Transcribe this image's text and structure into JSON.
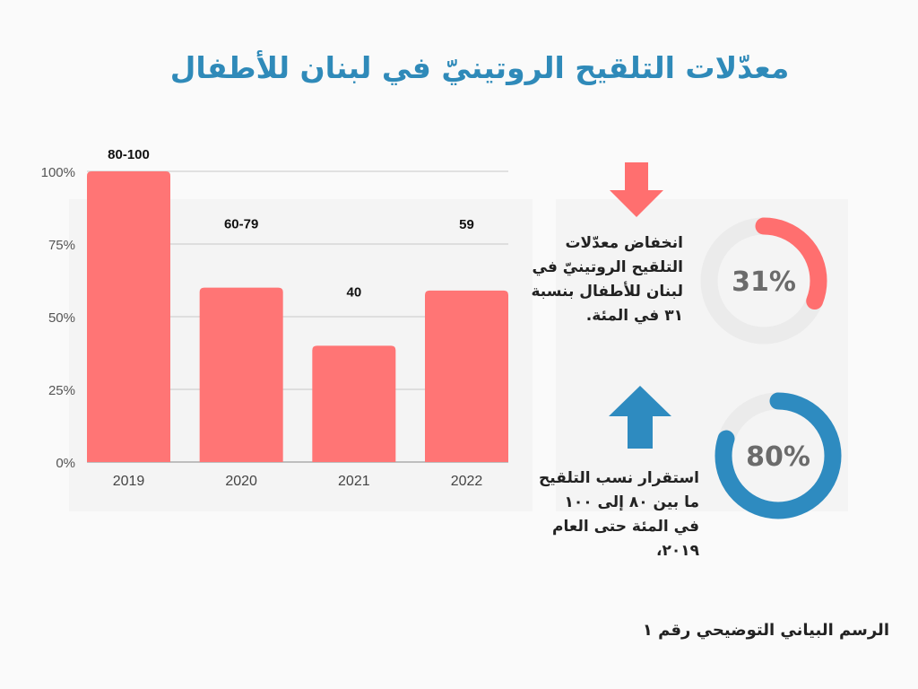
{
  "title": "معدّلات التلقيح الروتينيّ في لبنان للأطفال",
  "chart_data": {
    "type": "bar",
    "categories": [
      "2019",
      "2020",
      "2021",
      "2022"
    ],
    "values": [
      100,
      60,
      40,
      59
    ],
    "data_labels": [
      "80-100",
      "60-79",
      "40",
      "59"
    ],
    "yticks": [
      "0%",
      "25%",
      "50%",
      "75%",
      "100%"
    ],
    "ylim": [
      0,
      100
    ],
    "grid": true,
    "bar_color": "#ff7575"
  },
  "stats": [
    {
      "value": 31,
      "label": "31%",
      "text": "انخفاض معدّلات التلقيح الروتينيّ في لبنان للأطفال بنسبة ٣١ في المئة.",
      "color": "#ff6f6f",
      "arrow": "arrow-down"
    },
    {
      "value": 80,
      "label": "80%",
      "text": "استقرار نسب التلقيح ما بين ٨٠ إلى ١٠٠ في المئة حتى العام ٢٠١٩،",
      "color": "#2e8bc0",
      "arrow": "arrow-up"
    }
  ],
  "footer": "الرسم البياني التوضيحي رقم ١"
}
